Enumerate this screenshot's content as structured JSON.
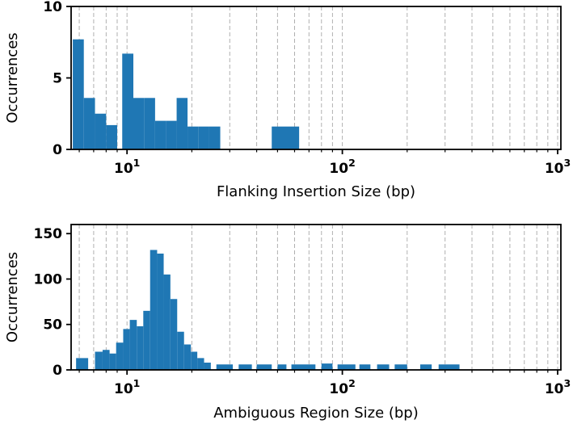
{
  "figure": {
    "background": "#ffffff",
    "bar_color": "#1f77b4",
    "grid_color": "#b0b0b0",
    "axis_color": "#000000"
  },
  "chart_data": [
    {
      "type": "bar",
      "title": "",
      "xlabel": "Flanking Insertion Size (bp)",
      "ylabel": "Occurrences",
      "x_scale": "log",
      "xlim": [
        5.5,
        1035
      ],
      "ylim": [
        0,
        10
      ],
      "yticks": [
        0,
        5,
        10
      ],
      "xticks": [
        10,
        100,
        1000
      ],
      "xtick_labels": [
        "10^1",
        "10^2",
        "10^3"
      ],
      "grid": "vertical-dashed-major-and-minor",
      "legend": "none",
      "bars": [
        {
          "x0": 5.6,
          "x1": 6.3,
          "h": 7.7
        },
        {
          "x0": 6.3,
          "x1": 7.1,
          "h": 3.6
        },
        {
          "x0": 7.1,
          "x1": 8.0,
          "h": 2.5
        },
        {
          "x0": 8.0,
          "x1": 9.0,
          "h": 1.7
        },
        {
          "x0": 9.5,
          "x1": 10.7,
          "h": 6.7
        },
        {
          "x0": 10.7,
          "x1": 12.0,
          "h": 3.6
        },
        {
          "x0": 12.0,
          "x1": 13.5,
          "h": 3.6
        },
        {
          "x0": 13.5,
          "x1": 15.2,
          "h": 2.0
        },
        {
          "x0": 15.2,
          "x1": 17.0,
          "h": 2.0
        },
        {
          "x0": 17.0,
          "x1": 19.1,
          "h": 3.6
        },
        {
          "x0": 19.1,
          "x1": 21.5,
          "h": 1.6
        },
        {
          "x0": 21.5,
          "x1": 24.1,
          "h": 1.6
        },
        {
          "x0": 24.1,
          "x1": 27.1,
          "h": 1.6
        },
        {
          "x0": 47.0,
          "x1": 63.0,
          "h": 1.6
        }
      ]
    },
    {
      "type": "bar",
      "title": "",
      "xlabel": "Ambiguous Region Size (bp)",
      "ylabel": "Occurrences",
      "x_scale": "log",
      "xlim": [
        5.5,
        1035
      ],
      "ylim": [
        0,
        160
      ],
      "yticks": [
        0,
        50,
        100,
        150
      ],
      "xticks": [
        10,
        100,
        1000
      ],
      "xtick_labels": [
        "10^1",
        "10^2",
        "10^3"
      ],
      "grid": "vertical-dashed-major-and-minor",
      "legend": "none",
      "bars": [
        {
          "x0": 5.8,
          "x1": 6.6,
          "h": 13
        },
        {
          "x0": 7.1,
          "x1": 7.7,
          "h": 20
        },
        {
          "x0": 7.7,
          "x1": 8.3,
          "h": 22
        },
        {
          "x0": 8.3,
          "x1": 8.9,
          "h": 18
        },
        {
          "x0": 8.9,
          "x1": 9.6,
          "h": 30
        },
        {
          "x0": 9.6,
          "x1": 10.3,
          "h": 45
        },
        {
          "x0": 10.3,
          "x1": 11.1,
          "h": 55
        },
        {
          "x0": 11.1,
          "x1": 11.9,
          "h": 48
        },
        {
          "x0": 11.9,
          "x1": 12.8,
          "h": 65
        },
        {
          "x0": 12.8,
          "x1": 13.8,
          "h": 132
        },
        {
          "x0": 13.8,
          "x1": 14.8,
          "h": 128
        },
        {
          "x0": 14.8,
          "x1": 15.9,
          "h": 105
        },
        {
          "x0": 15.9,
          "x1": 17.1,
          "h": 78
        },
        {
          "x0": 17.1,
          "x1": 18.4,
          "h": 42
        },
        {
          "x0": 18.4,
          "x1": 19.8,
          "h": 28
        },
        {
          "x0": 19.8,
          "x1": 21.2,
          "h": 20
        },
        {
          "x0": 21.2,
          "x1": 22.8,
          "h": 13
        },
        {
          "x0": 22.8,
          "x1": 24.5,
          "h": 8
        },
        {
          "x0": 26,
          "x1": 31,
          "h": 6
        },
        {
          "x0": 33,
          "x1": 38,
          "h": 6
        },
        {
          "x0": 40,
          "x1": 47,
          "h": 6
        },
        {
          "x0": 50,
          "x1": 55,
          "h": 6
        },
        {
          "x0": 58,
          "x1": 75,
          "h": 6
        },
        {
          "x0": 80,
          "x1": 90,
          "h": 7
        },
        {
          "x0": 95,
          "x1": 115,
          "h": 6
        },
        {
          "x0": 120,
          "x1": 135,
          "h": 6
        },
        {
          "x0": 145,
          "x1": 165,
          "h": 6
        },
        {
          "x0": 175,
          "x1": 200,
          "h": 6
        },
        {
          "x0": 230,
          "x1": 260,
          "h": 6
        },
        {
          "x0": 280,
          "x1": 350,
          "h": 6
        }
      ]
    }
  ]
}
